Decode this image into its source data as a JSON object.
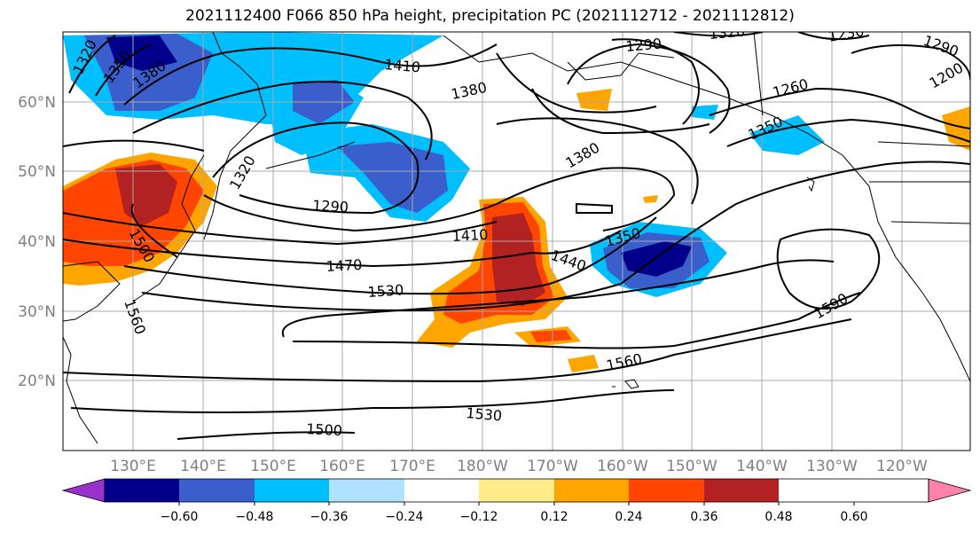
{
  "title": "2021112400 F066 850 hPa height, precipitation PC (2021112712 - 2021112812)",
  "lat_labels": [
    "60°N",
    "50°N",
    "40°N",
    "30°N",
    "20°N"
  ],
  "lon_labels": [
    "130°E",
    "140°E",
    "150°E",
    "160°E",
    "170°E",
    "180°W",
    "170°W",
    "160°W",
    "150°W",
    "140°W",
    "130°W",
    "120°W"
  ],
  "contour_labels": [
    "1320",
    "1350",
    "1380",
    "1410",
    "1380",
    "1290",
    "1230",
    "1290",
    "1260",
    "1200",
    "1320",
    "1290",
    "1320",
    "1380",
    "1350",
    "1500",
    "1410",
    "1350",
    "1470",
    "1440",
    "1530",
    "1590",
    "1560",
    "1530",
    "1500",
    "1560"
  ],
  "colorbar": {
    "colors": [
      "#9932cc",
      "#00008b",
      "#3a5fcd",
      "#00bfff",
      "#b0e2ff",
      "#ffffff",
      "#ffec8b",
      "#ffa500",
      "#ff4500",
      "#b22222",
      "#ff82ab"
    ],
    "tick_labels": [
      "−0.60",
      "−0.48",
      "−0.36",
      "−0.24",
      "−0.12",
      "0.12",
      "0.24",
      "0.36",
      "0.48",
      "0.60"
    ]
  }
}
